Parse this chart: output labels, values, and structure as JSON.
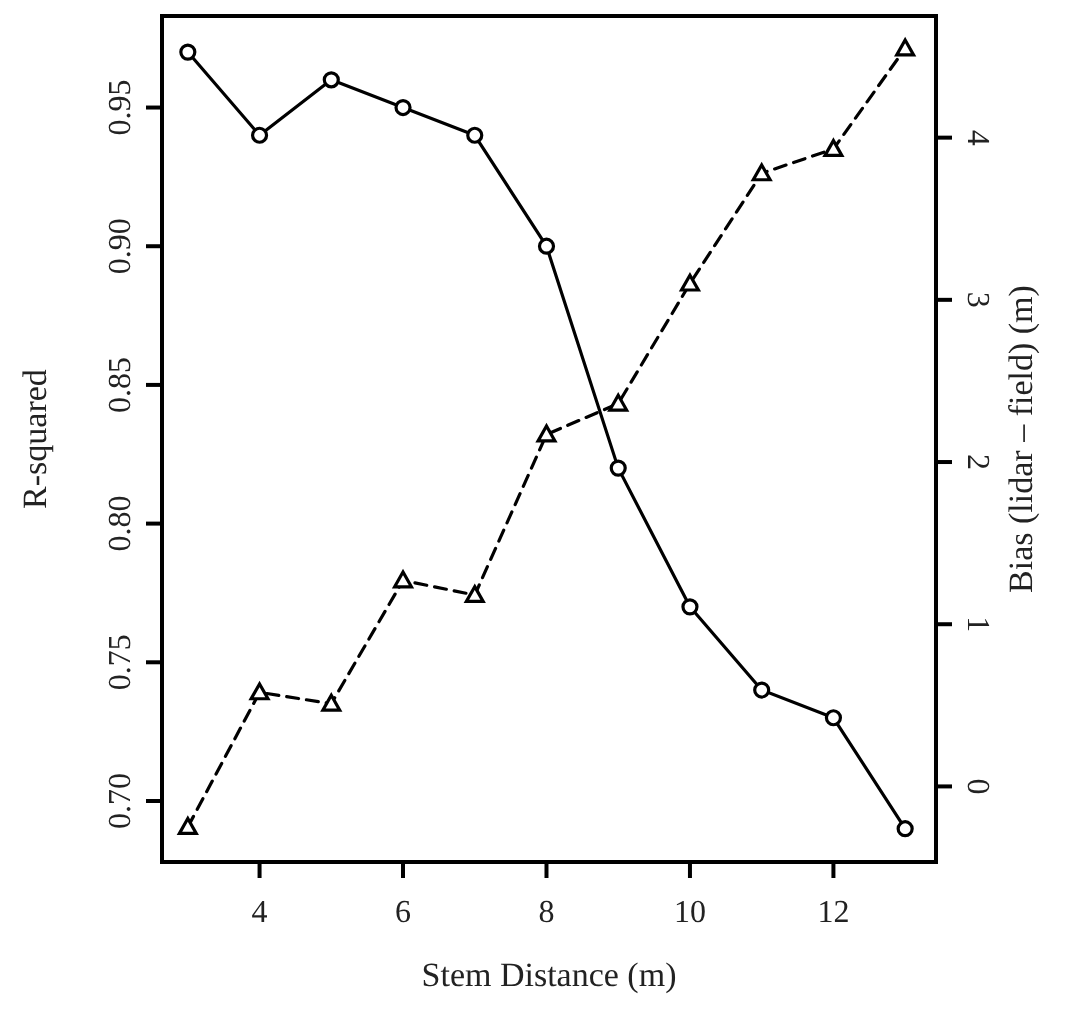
{
  "chart_data": {
    "type": "line",
    "xlabel": "Stem Distance (m)",
    "ylabel": "R-squared",
    "y2label": "Bias (lidar – field) (m)",
    "x": [
      3,
      4,
      5,
      6,
      7,
      8,
      9,
      10,
      11,
      12,
      13
    ],
    "series": [
      {
        "color": "#000000",
        "marker": "circle",
        "line_style": "solid",
        "values": [
          0.97,
          0.94,
          0.96,
          0.95,
          0.94,
          0.9,
          0.82,
          0.77,
          0.74,
          0.73,
          0.69
        ]
      },
      {
        "color": "#000000",
        "marker": "triangle",
        "line_style": "dashed",
        "axis": "y2",
        "values": [
          -0.25,
          0.58,
          0.51,
          1.27,
          1.18,
          2.17,
          2.36,
          3.1,
          3.78,
          3.93,
          4.55
        ]
      }
    ],
    "xlim": [
      2.64,
      13.43
    ],
    "xticks": [
      4,
      6,
      8,
      10,
      12
    ],
    "ylim": [
      0.678,
      0.983
    ],
    "yticks": [
      {
        "value": 0.7,
        "label": "0.70"
      },
      {
        "value": 0.75,
        "label": "0.75"
      },
      {
        "value": 0.8,
        "label": "0.80"
      },
      {
        "value": 0.85,
        "label": "0.85"
      },
      {
        "value": 0.9,
        "label": "0.90"
      },
      {
        "value": 0.95,
        "label": "0.95"
      }
    ],
    "y2lim": [
      -0.466,
      4.75
    ],
    "y2ticks": [
      0,
      1,
      2,
      3,
      4
    ],
    "grid": false
  }
}
